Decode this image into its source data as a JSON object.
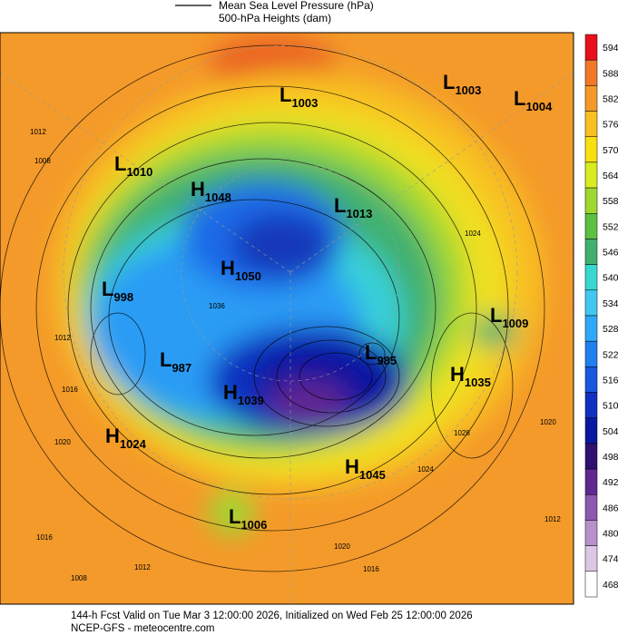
{
  "header": {
    "line1": "Mean Sea Level Pressure (hPa)",
    "line2": "500-hPa Heights (dam)"
  },
  "colorbar": {
    "levels": [
      594,
      588,
      582,
      576,
      570,
      564,
      558,
      552,
      546,
      540,
      534,
      528,
      522,
      516,
      510,
      504,
      498,
      492,
      486,
      480,
      474,
      468
    ],
    "colors": [
      "#e8101a",
      "#f07828",
      "#f59a28",
      "#f8c020",
      "#f8e010",
      "#d8ec20",
      "#9ed830",
      "#5cc040",
      "#40b070",
      "#38d8d0",
      "#40c8f0",
      "#30a8f8",
      "#2080f0",
      "#1858e0",
      "#1030c0",
      "#0818a0",
      "#301070",
      "#602890",
      "#8c58b0",
      "#b890cc",
      "#dcc8e4",
      "#ffffff"
    ]
  },
  "centers": [
    {
      "kind": "L",
      "value": 1003
    },
    {
      "kind": "L",
      "value": 1003
    },
    {
      "kind": "L",
      "value": 1004
    },
    {
      "kind": "L",
      "value": 1010
    },
    {
      "kind": "H",
      "value": 1048
    },
    {
      "kind": "L",
      "value": 1013
    },
    {
      "kind": "H",
      "value": 1050
    },
    {
      "kind": "L",
      "value": 998
    },
    {
      "kind": "L",
      "value": 1009
    },
    {
      "kind": "L",
      "value": 987
    },
    {
      "kind": "L",
      "value": 985
    },
    {
      "kind": "H",
      "value": 1035
    },
    {
      "kind": "H",
      "value": 1039
    },
    {
      "kind": "H",
      "value": 1024
    },
    {
      "kind": "H",
      "value": 1045
    },
    {
      "kind": "L",
      "value": 1006
    }
  ],
  "contour_labels": [
    1012,
    1008,
    1012,
    1016,
    1020,
    1016,
    1012,
    1008,
    1020,
    1016,
    1024,
    1028,
    1020,
    1012,
    1024,
    1036
  ],
  "footer": {
    "line1": "144-h Fcst Valid on Tue Mar  3 12:00:00 2026, Initialized on Wed Feb 25 12:00:00 2026",
    "line2": "NCEP-GFS  - meteocentre.com"
  }
}
